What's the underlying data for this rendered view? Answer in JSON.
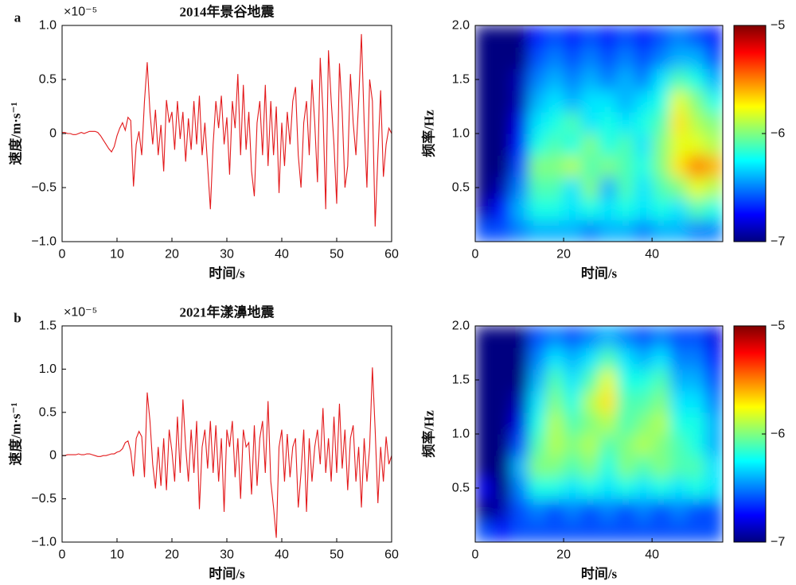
{
  "chart_data": [
    {
      "type": "line",
      "panel": "a",
      "title": "2014年景谷地震",
      "y_exponent_label": "×10⁻⁵",
      "xlabel": "时间/s",
      "ylabel": "速度/m·s⁻¹",
      "color": "#e31a1c",
      "xlim": [
        0,
        60
      ],
      "xticks": [
        0,
        10,
        20,
        30,
        40,
        50,
        60
      ],
      "ylim": [
        -1,
        1
      ],
      "yticks": [
        {
          "value": -1,
          "label": "−1.0"
        },
        {
          "value": -0.5,
          "label": "−0.5"
        },
        0,
        0.5,
        {
          "value": 1,
          "label": "1.0"
        }
      ],
      "x": [
        0,
        0.5,
        1,
        1.5,
        2,
        2.5,
        3,
        3.5,
        4,
        4.5,
        5,
        5.5,
        6,
        6.5,
        7,
        7.5,
        8,
        8.5,
        9,
        9.5,
        10,
        10.5,
        11,
        11.5,
        12,
        12.5,
        13,
        13.5,
        14,
        14.5,
        15,
        15.5,
        16,
        16.5,
        17,
        17.5,
        18,
        18.5,
        19,
        19.5,
        20,
        20.5,
        21,
        21.5,
        22,
        22.5,
        23,
        23.5,
        24,
        24.5,
        25,
        25.5,
        26,
        26.5,
        27,
        27.5,
        28,
        28.5,
        29,
        29.5,
        30,
        30.5,
        31,
        31.5,
        32,
        32.5,
        33,
        33.5,
        34,
        34.5,
        35,
        35.5,
        36,
        36.5,
        37,
        37.5,
        38,
        38.5,
        39,
        39.5,
        40,
        40.5,
        41,
        41.5,
        42,
        42.5,
        43,
        43.5,
        44,
        44.5,
        45,
        45.5,
        46,
        46.5,
        47,
        47.5,
        48,
        48.5,
        49,
        49.5,
        50,
        50.5,
        51,
        51.5,
        52,
        52.5,
        53,
        53.5,
        54,
        54.5,
        55,
        55.5,
        56,
        56.5,
        57,
        57.5,
        58,
        58.5,
        59,
        59.5,
        60
      ],
      "values": [
        0.01,
        0.01,
        0,
        0,
        -0.01,
        -0.01,
        0,
        0.01,
        0,
        0.01,
        0.02,
        0.02,
        0.02,
        0.01,
        -0.02,
        -0.06,
        -0.1,
        -0.14,
        -0.17,
        -0.12,
        -0.02,
        0.05,
        0.1,
        0.03,
        0.15,
        0.12,
        -0.49,
        -0.1,
        0.02,
        -0.2,
        0.3,
        0.66,
        0.2,
        -0.1,
        0.22,
        -0.2,
        0.08,
        -0.35,
        0.31,
        0.1,
        0.2,
        -0.15,
        0.3,
        -0.05,
        0.2,
        -0.26,
        0.14,
        -0.15,
        0.3,
        -0.1,
        0.35,
        -0.2,
        0.1,
        -0.3,
        -0.7,
        -0.1,
        0.3,
        0.05,
        0.35,
        -0.1,
        0.15,
        -0.38,
        0.3,
        0.05,
        0.55,
        -0.2,
        0.45,
        -0.15,
        0.2,
        -0.35,
        -0.58,
        0.1,
        0.3,
        -0.2,
        0.45,
        -0.3,
        0.3,
        -0.2,
        0.25,
        -0.55,
        0.1,
        -0.3,
        0.2,
        -0.1,
        0.3,
        0.43,
        -0.2,
        -0.5,
        0.1,
        0.3,
        -0.2,
        0.5,
        0.1,
        -0.45,
        0.7,
        0.2,
        -0.7,
        0.77,
        0.3,
        -0.1,
        -0.65,
        0.65,
        0.2,
        -0.5,
        -0.3,
        0.55,
        0.1,
        -0.2,
        0.3,
        0.92,
        0.1,
        -0.5,
        0.5,
        0.3,
        -0.86,
        -0.2,
        0.4,
        -0.4,
        -0.1,
        0.05,
        0
      ]
    },
    {
      "type": "heatmap",
      "xlabel": "时间/s",
      "ylabel": "频率/Hz",
      "colormap": "jet",
      "xlim": [
        0,
        56
      ],
      "xticks": [
        0,
        20,
        40
      ],
      "ylim": [
        0,
        2
      ],
      "yticks": [
        0.5,
        {
          "value": 1,
          "label": "1.0"
        },
        1.5,
        {
          "value": 2,
          "label": "2.0"
        }
      ],
      "zlim": [
        -7,
        -5
      ],
      "zticks": [
        {
          "value": -7,
          "label": "−7"
        },
        {
          "value": -6,
          "label": "−6"
        },
        {
          "value": -5,
          "label": "−5"
        }
      ],
      "x": [
        2,
        6,
        10,
        14,
        18,
        22,
        26,
        30,
        34,
        38,
        42,
        46,
        50,
        54
      ],
      "y": [
        0.1,
        0.3,
        0.5,
        0.7,
        0.9,
        1.1,
        1.3,
        1.5,
        1.7,
        1.9
      ],
      "z": [
        [
          -6.6,
          -6.6,
          -6.5,
          -6.4,
          -6.4,
          -6.4,
          -6.5,
          -6.4,
          -6.4,
          -6.5,
          -6.4,
          -6.4,
          -6.5,
          -6.5
        ],
        [
          -6.9,
          -6.7,
          -6.4,
          -6.2,
          -6.2,
          -6.3,
          -6.2,
          -6.3,
          -6.2,
          -6.3,
          -6.2,
          -6.3,
          -6.1,
          -6.2
        ],
        [
          -7,
          -6.9,
          -6.5,
          -6.1,
          -6.1,
          -6.3,
          -6,
          -6.4,
          -6.1,
          -6.3,
          -6.1,
          -6,
          -5.8,
          -5.9
        ],
        [
          -7,
          -7,
          -6.6,
          -6,
          -6,
          -5.9,
          -6.1,
          -6,
          -6.1,
          -6.2,
          -6,
          -5.7,
          -5.5,
          -5.6
        ],
        [
          -7,
          -7,
          -6.7,
          -6.2,
          -6.1,
          -6.2,
          -6,
          -6.2,
          -6.1,
          -6.3,
          -6,
          -5.8,
          -5.8,
          -5.9
        ],
        [
          -7,
          -7,
          -6.8,
          -6.3,
          -6.2,
          -6.1,
          -6.3,
          -6.2,
          -6.3,
          -6.2,
          -6.1,
          -5.7,
          -5.9,
          -6
        ],
        [
          -7,
          -7,
          -6.9,
          -6.4,
          -6.3,
          -6.4,
          -6.3,
          -6.3,
          -6.4,
          -6.3,
          -6.2,
          -5.8,
          -6,
          -6.2
        ],
        [
          -7,
          -7,
          -6.9,
          -6.5,
          -6.4,
          -6.5,
          -6.4,
          -6.5,
          -6.4,
          -6.5,
          -6.3,
          -6.1,
          -6.2,
          -6.4
        ],
        [
          -7,
          -7,
          -7,
          -6.6,
          -6.5,
          -6.6,
          -6.5,
          -6.6,
          -6.5,
          -6.6,
          -6.5,
          -6.4,
          -6.4,
          -6.6
        ],
        [
          -7,
          -7,
          -7,
          -6.7,
          -6.6,
          -6.7,
          -6.6,
          -6.7,
          -6.6,
          -6.7,
          -6.6,
          -6.5,
          -6.6,
          -6.7
        ]
      ]
    },
    {
      "type": "line",
      "panel": "b",
      "title": "2021年漾濞地震",
      "y_exponent_label": "×10⁻⁵",
      "xlabel": "时间/s",
      "ylabel": "速度/m·s⁻¹",
      "color": "#e31a1c",
      "xlim": [
        0,
        60
      ],
      "xticks": [
        0,
        10,
        20,
        30,
        40,
        50,
        60
      ],
      "ylim": [
        -1,
        1.5
      ],
      "yticks": [
        {
          "value": -1,
          "label": "−1.0"
        },
        {
          "value": -0.5,
          "label": "−0.5"
        },
        0,
        0.5,
        {
          "value": 1,
          "label": "1.0"
        },
        1.5
      ],
      "x": [
        0,
        0.5,
        1,
        1.5,
        2,
        2.5,
        3,
        3.5,
        4,
        4.5,
        5,
        5.5,
        6,
        6.5,
        7,
        7.5,
        8,
        8.5,
        9,
        9.5,
        10,
        10.5,
        11,
        11.5,
        12,
        12.5,
        13,
        13.5,
        14,
        14.5,
        15,
        15.5,
        16,
        16.5,
        17,
        17.5,
        18,
        18.5,
        19,
        19.5,
        20,
        20.5,
        21,
        21.5,
        22,
        22.5,
        23,
        23.5,
        24,
        24.5,
        25,
        25.5,
        26,
        26.5,
        27,
        27.5,
        28,
        28.5,
        29,
        29.5,
        30,
        30.5,
        31,
        31.5,
        32,
        32.5,
        33,
        33.5,
        34,
        34.5,
        35,
        35.5,
        36,
        36.5,
        37,
        37.5,
        38,
        38.5,
        39,
        39.5,
        40,
        40.5,
        41,
        41.5,
        42,
        42.5,
        43,
        43.5,
        44,
        44.5,
        45,
        45.5,
        46,
        46.5,
        47,
        47.5,
        48,
        48.5,
        49,
        49.5,
        50,
        50.5,
        51,
        51.5,
        52,
        52.5,
        53,
        53.5,
        54,
        54.5,
        55,
        55.5,
        56,
        56.5,
        57,
        57.5,
        58,
        58.5,
        59,
        59.5,
        60
      ],
      "values": [
        0,
        0,
        0.01,
        0.01,
        0.01,
        0.01,
        0.02,
        0.01,
        0.01,
        0.02,
        0.02,
        0.01,
        0,
        -0.01,
        -0.01,
        0,
        0,
        0.01,
        0.02,
        0.02,
        0.04,
        0.05,
        0.08,
        0.15,
        0.17,
        0.05,
        -0.24,
        0.2,
        0.28,
        0.22,
        -0.25,
        0.73,
        0.4,
        -0.1,
        -0.38,
        0.1,
        -0.35,
        0.2,
        -0.4,
        0.3,
        0.05,
        -0.3,
        0.45,
        -0.2,
        0.65,
        0.1,
        -0.3,
        0.3,
        -0.2,
        0.4,
        -0.62,
        0.1,
        0.3,
        -0.15,
        0.4,
        -0.2,
        0.35,
        -0.3,
        0.2,
        -0.65,
        0.3,
        0.1,
        0.4,
        -0.25,
        0.2,
        -0.5,
        0.3,
        0.1,
        0.15,
        -0.45,
        0.35,
        -0.35,
        0.2,
        0.4,
        -0.2,
        0.63,
        -0.3,
        -0.6,
        -0.95,
        0.1,
        0.3,
        -0.3,
        0.25,
        -0.25,
        0.1,
        0.2,
        -0.6,
        -0.2,
        0.3,
        -0.65,
        0.2,
        -0.3,
        0.1,
        0.3,
        -0.1,
        0.55,
        -0.2,
        0.2,
        -0.3,
        0.45,
        -0.2,
        0.6,
        -0.15,
        0.3,
        -0.4,
        0.2,
        0.35,
        -0.3,
        0.1,
        -0.6,
        0.2,
        -0.3,
        0.1,
        1.02,
        0.3,
        -0.55,
        0.1,
        -0.3,
        0.22,
        -0.1,
        0
      ]
    },
    {
      "type": "heatmap",
      "xlabel": "时间/s",
      "ylabel": "频率/Hz",
      "colormap": "jet",
      "xlim": [
        0,
        56
      ],
      "xticks": [
        0,
        20,
        40
      ],
      "ylim": [
        0,
        2
      ],
      "yticks": [
        0.5,
        {
          "value": 1,
          "label": "1.0"
        },
        1.5,
        {
          "value": 2,
          "label": "2.0"
        }
      ],
      "zlim": [
        -7,
        -5
      ],
      "zticks": [
        {
          "value": -7,
          "label": "−7"
        },
        {
          "value": -6,
          "label": "−6"
        },
        {
          "value": -5,
          "label": "−5"
        }
      ],
      "x": [
        2,
        6,
        10,
        14,
        18,
        22,
        26,
        30,
        34,
        38,
        42,
        46,
        50,
        54
      ],
      "y": [
        0.1,
        0.3,
        0.5,
        0.7,
        0.9,
        1.1,
        1.3,
        1.5,
        1.7,
        1.9
      ],
      "z": [
        [
          -6.6,
          -6.7,
          -6.6,
          -6.6,
          -6.6,
          -6.6,
          -6.6,
          -6.6,
          -6.6,
          -6.6,
          -6.6,
          -6.6,
          -6.6,
          -6.6
        ],
        [
          -7,
          -6.9,
          -6.6,
          -6.5,
          -6.6,
          -6.5,
          -6.6,
          -6.5,
          -6.6,
          -6.5,
          -6.6,
          -6.5,
          -6.6,
          -6.6
        ],
        [
          -6.8,
          -7,
          -6.5,
          -6.2,
          -6.2,
          -6.3,
          -6.2,
          -6.3,
          -6.2,
          -6.3,
          -6.2,
          -6.3,
          -6.2,
          -6.3
        ],
        [
          -7,
          -7,
          -6.4,
          -6,
          -6,
          -6.1,
          -6,
          -6.2,
          -6,
          -6.1,
          -6,
          -6.1,
          -6.1,
          -6.3
        ],
        [
          -7,
          -7,
          -6.6,
          -6.1,
          -5.9,
          -6,
          -5.9,
          -6.1,
          -6,
          -5.9,
          -6,
          -6.1,
          -6.2,
          -6.4
        ],
        [
          -7,
          -7,
          -6.8,
          -6.2,
          -5.9,
          -6.1,
          -6,
          -5.9,
          -6.1,
          -6,
          -5.9,
          -6.2,
          -6.2,
          -6.4
        ],
        [
          -7,
          -7,
          -6.9,
          -6.3,
          -6,
          -6.2,
          -5.9,
          -5.7,
          -6.1,
          -6.1,
          -6,
          -6.3,
          -6.3,
          -6.5
        ],
        [
          -7,
          -7,
          -7,
          -6.4,
          -6.1,
          -6.3,
          -6.1,
          -5.8,
          -6.2,
          -6.2,
          -6.1,
          -6.4,
          -6.4,
          -6.6
        ],
        [
          -7,
          -7,
          -7,
          -6.5,
          -6.3,
          -6.4,
          -6.3,
          -6.1,
          -6.3,
          -6.4,
          -6.3,
          -6.5,
          -6.5,
          -6.7
        ],
        [
          -7,
          -7,
          -7,
          -6.6,
          -6.5,
          -6.6,
          -6.5,
          -6.4,
          -6.5,
          -6.6,
          -6.5,
          -6.6,
          -6.6,
          -6.8
        ]
      ]
    }
  ]
}
